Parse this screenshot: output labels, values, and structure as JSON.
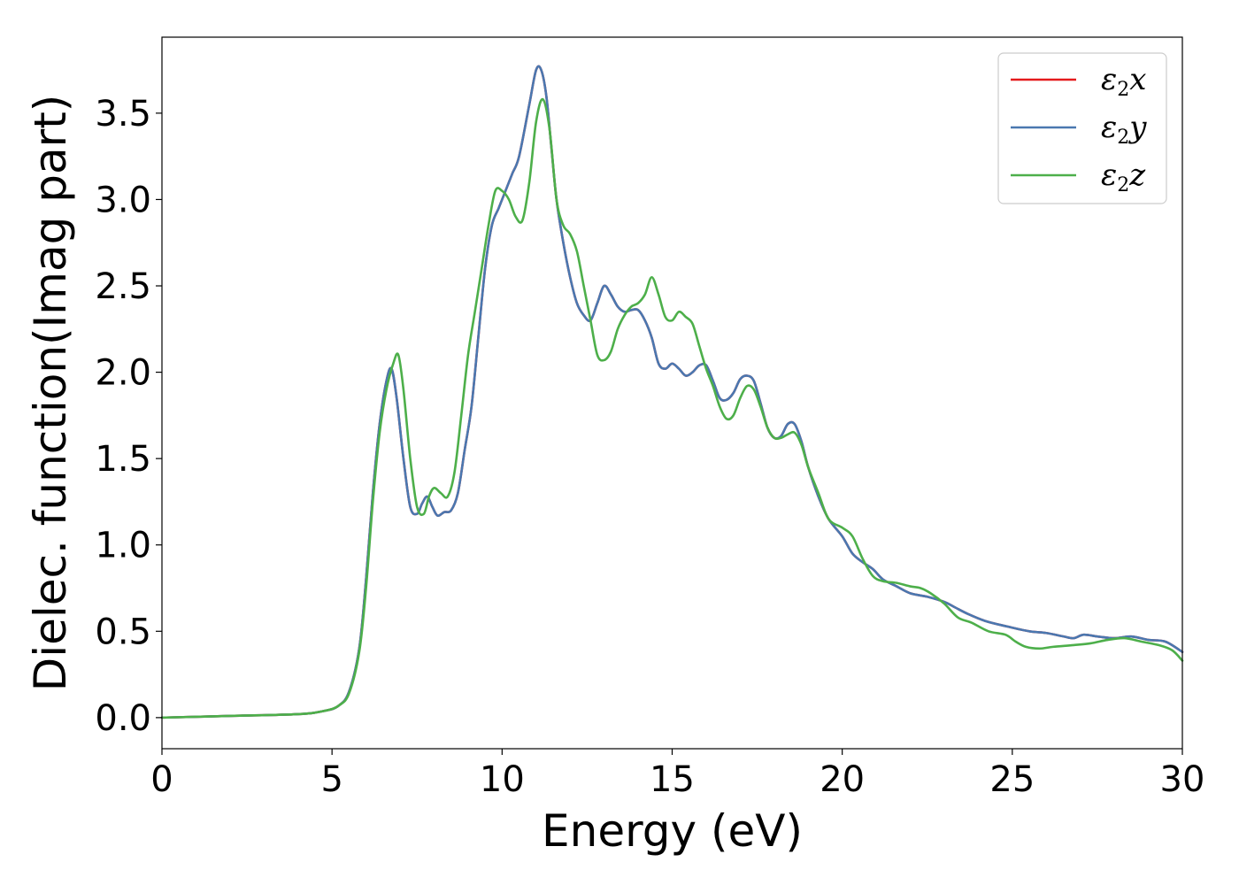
{
  "chart_data": {
    "type": "line",
    "title": "",
    "xlabel": "Energy (eV)",
    "ylabel": "Dielec. function(Imag part)",
    "xlim": [
      0,
      30
    ],
    "ylim": [
      -0.18,
      3.94
    ],
    "xticks": [
      "0",
      "5",
      "10",
      "15",
      "20",
      "25",
      "30"
    ],
    "yticks": [
      "0.0",
      "0.5",
      "1.0",
      "1.5",
      "2.0",
      "2.5",
      "3.0",
      "3.5"
    ],
    "grid": false,
    "legend_position": "top-right",
    "series": [
      {
        "name": "ε2x",
        "legend_base": "ε",
        "legend_sub": "2",
        "legend_var": "x",
        "color": "#e41a1c",
        "x": [
          0,
          2,
          4,
          4.8,
          5.2,
          5.5,
          5.8,
          6.0,
          6.2,
          6.4,
          6.6,
          6.75,
          6.9,
          7.1,
          7.3,
          7.5,
          7.65,
          7.8,
          7.95,
          8.1,
          8.3,
          8.5,
          8.7,
          8.9,
          9.1,
          9.3,
          9.5,
          9.7,
          9.9,
          10.1,
          10.3,
          10.5,
          10.8,
          11.0,
          11.15,
          11.3,
          11.45,
          11.6,
          11.8,
          12.0,
          12.2,
          12.4,
          12.6,
          12.8,
          13.0,
          13.2,
          13.4,
          13.6,
          13.8,
          14.0,
          14.2,
          14.4,
          14.6,
          14.8,
          15.0,
          15.2,
          15.4,
          15.6,
          15.8,
          16.0,
          16.2,
          16.4,
          16.6,
          16.8,
          17.0,
          17.2,
          17.4,
          17.6,
          17.8,
          18.0,
          18.2,
          18.4,
          18.6,
          18.8,
          19.0,
          19.3,
          19.6,
          20.0,
          20.3,
          20.6,
          20.9,
          21.2,
          21.6,
          22.0,
          22.5,
          23.0,
          23.3,
          23.7,
          24.2,
          24.8,
          25.5,
          26.0,
          26.5,
          26.8,
          27.1,
          27.5,
          28.0,
          28.5,
          29.0,
          29.5,
          30.0
        ],
        "y": [
          0.0,
          0.01,
          0.02,
          0.04,
          0.07,
          0.15,
          0.4,
          0.8,
          1.3,
          1.7,
          1.95,
          2.02,
          1.85,
          1.5,
          1.22,
          1.18,
          1.24,
          1.28,
          1.22,
          1.17,
          1.19,
          1.2,
          1.3,
          1.55,
          1.8,
          2.2,
          2.6,
          2.85,
          2.95,
          3.05,
          3.15,
          3.25,
          3.55,
          3.75,
          3.75,
          3.6,
          3.3,
          3.0,
          2.75,
          2.55,
          2.4,
          2.33,
          2.3,
          2.4,
          2.5,
          2.45,
          2.38,
          2.35,
          2.36,
          2.36,
          2.3,
          2.2,
          2.05,
          2.02,
          2.05,
          2.02,
          1.98,
          2.0,
          2.04,
          2.04,
          1.95,
          1.85,
          1.84,
          1.88,
          1.96,
          1.98,
          1.95,
          1.82,
          1.68,
          1.62,
          1.63,
          1.7,
          1.7,
          1.6,
          1.45,
          1.28,
          1.15,
          1.05,
          0.95,
          0.9,
          0.86,
          0.8,
          0.76,
          0.72,
          0.7,
          0.67,
          0.64,
          0.6,
          0.56,
          0.53,
          0.5,
          0.49,
          0.47,
          0.46,
          0.48,
          0.47,
          0.46,
          0.47,
          0.45,
          0.44,
          0.38
        ]
      },
      {
        "name": "ε2y",
        "legend_base": "ε",
        "legend_sub": "2",
        "legend_var": "y",
        "color": "#4a78b0",
        "x": [
          0,
          2,
          4,
          4.8,
          5.2,
          5.5,
          5.8,
          6.0,
          6.2,
          6.4,
          6.6,
          6.75,
          6.9,
          7.1,
          7.3,
          7.5,
          7.65,
          7.8,
          7.95,
          8.1,
          8.3,
          8.5,
          8.7,
          8.9,
          9.1,
          9.3,
          9.5,
          9.7,
          9.9,
          10.1,
          10.3,
          10.5,
          10.8,
          11.0,
          11.15,
          11.3,
          11.45,
          11.6,
          11.8,
          12.0,
          12.2,
          12.4,
          12.6,
          12.8,
          13.0,
          13.2,
          13.4,
          13.6,
          13.8,
          14.0,
          14.2,
          14.4,
          14.6,
          14.8,
          15.0,
          15.2,
          15.4,
          15.6,
          15.8,
          16.0,
          16.2,
          16.4,
          16.6,
          16.8,
          17.0,
          17.2,
          17.4,
          17.6,
          17.8,
          18.0,
          18.2,
          18.4,
          18.6,
          18.8,
          19.0,
          19.3,
          19.6,
          20.0,
          20.3,
          20.6,
          20.9,
          21.2,
          21.6,
          22.0,
          22.5,
          23.0,
          23.3,
          23.7,
          24.2,
          24.8,
          25.5,
          26.0,
          26.5,
          26.8,
          27.1,
          27.5,
          28.0,
          28.5,
          29.0,
          29.5,
          30.0
        ],
        "y": [
          0.0,
          0.01,
          0.02,
          0.04,
          0.07,
          0.15,
          0.4,
          0.8,
          1.3,
          1.7,
          1.95,
          2.02,
          1.85,
          1.5,
          1.22,
          1.18,
          1.24,
          1.28,
          1.22,
          1.17,
          1.19,
          1.2,
          1.3,
          1.55,
          1.8,
          2.2,
          2.6,
          2.85,
          2.95,
          3.05,
          3.15,
          3.25,
          3.55,
          3.75,
          3.75,
          3.6,
          3.3,
          3.0,
          2.75,
          2.55,
          2.4,
          2.33,
          2.3,
          2.4,
          2.5,
          2.45,
          2.38,
          2.35,
          2.36,
          2.36,
          2.3,
          2.2,
          2.05,
          2.02,
          2.05,
          2.02,
          1.98,
          2.0,
          2.04,
          2.04,
          1.95,
          1.85,
          1.84,
          1.88,
          1.96,
          1.98,
          1.95,
          1.82,
          1.68,
          1.62,
          1.63,
          1.7,
          1.7,
          1.6,
          1.45,
          1.28,
          1.15,
          1.05,
          0.95,
          0.9,
          0.86,
          0.8,
          0.76,
          0.72,
          0.7,
          0.67,
          0.64,
          0.6,
          0.56,
          0.53,
          0.5,
          0.49,
          0.47,
          0.46,
          0.48,
          0.47,
          0.46,
          0.47,
          0.45,
          0.44,
          0.38
        ]
      },
      {
        "name": "ε2z",
        "legend_base": "ε",
        "legend_sub": "2",
        "legend_var": "z",
        "color": "#4daf4a",
        "x": [
          0,
          2,
          4,
          4.8,
          5.2,
          5.5,
          5.8,
          6.0,
          6.2,
          6.4,
          6.6,
          6.8,
          6.95,
          7.1,
          7.3,
          7.5,
          7.7,
          7.85,
          8.0,
          8.2,
          8.4,
          8.6,
          8.8,
          9.0,
          9.2,
          9.4,
          9.6,
          9.8,
          10.0,
          10.2,
          10.4,
          10.6,
          10.8,
          11.0,
          11.2,
          11.4,
          11.6,
          11.8,
          12.0,
          12.2,
          12.4,
          12.6,
          12.8,
          13.0,
          13.2,
          13.4,
          13.6,
          13.8,
          14.0,
          14.2,
          14.4,
          14.6,
          14.8,
          15.0,
          15.2,
          15.4,
          15.6,
          15.8,
          16.0,
          16.2,
          16.4,
          16.6,
          16.8,
          17.0,
          17.2,
          17.4,
          17.6,
          17.8,
          18.0,
          18.2,
          18.4,
          18.6,
          18.8,
          19.0,
          19.3,
          19.6,
          20.0,
          20.3,
          20.6,
          20.9,
          21.2,
          21.6,
          22.0,
          22.3,
          22.6,
          23.0,
          23.4,
          23.8,
          24.3,
          24.8,
          25.1,
          25.4,
          25.8,
          26.2,
          26.8,
          27.3,
          27.8,
          28.3,
          28.8,
          29.3,
          29.7,
          30.0
        ],
        "y": [
          0.0,
          0.01,
          0.02,
          0.04,
          0.07,
          0.14,
          0.38,
          0.75,
          1.25,
          1.65,
          1.9,
          2.05,
          2.1,
          1.9,
          1.5,
          1.22,
          1.18,
          1.28,
          1.33,
          1.3,
          1.28,
          1.42,
          1.75,
          2.1,
          2.35,
          2.6,
          2.85,
          3.05,
          3.05,
          3.0,
          2.9,
          2.88,
          3.1,
          3.45,
          3.58,
          3.4,
          3.0,
          2.85,
          2.8,
          2.7,
          2.5,
          2.3,
          2.1,
          2.07,
          2.12,
          2.25,
          2.33,
          2.38,
          2.4,
          2.45,
          2.55,
          2.45,
          2.32,
          2.3,
          2.35,
          2.32,
          2.28,
          2.15,
          2.02,
          1.92,
          1.8,
          1.73,
          1.75,
          1.85,
          1.92,
          1.9,
          1.8,
          1.68,
          1.62,
          1.62,
          1.64,
          1.65,
          1.58,
          1.45,
          1.3,
          1.15,
          1.1,
          1.05,
          0.92,
          0.82,
          0.79,
          0.78,
          0.76,
          0.75,
          0.72,
          0.66,
          0.58,
          0.55,
          0.5,
          0.48,
          0.44,
          0.41,
          0.4,
          0.41,
          0.42,
          0.43,
          0.45,
          0.46,
          0.44,
          0.42,
          0.39,
          0.33
        ]
      }
    ]
  }
}
